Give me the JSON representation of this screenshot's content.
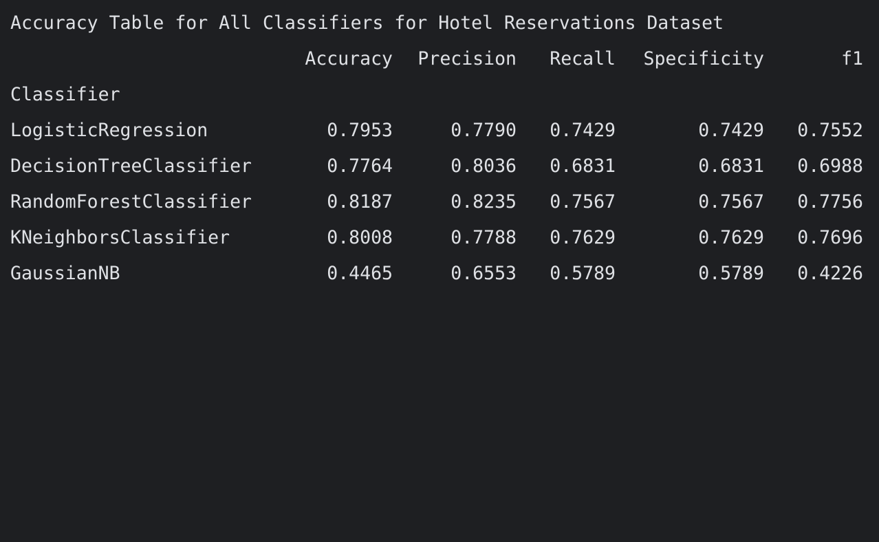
{
  "title": "Accuracy Table for All Classifiers for Hotel Reservations Dataset",
  "columns": [
    "Accuracy",
    "Precision",
    "Recall",
    "Specificity",
    "f1"
  ],
  "index_name": "Classifier",
  "rows": [
    {
      "name": "LogisticRegression",
      "values": [
        "0.7953",
        "0.7790",
        "0.7429",
        "0.7429",
        "0.7552"
      ]
    },
    {
      "name": "DecisionTreeClassifier",
      "values": [
        "0.7764",
        "0.8036",
        "0.6831",
        "0.6831",
        "0.6988"
      ]
    },
    {
      "name": "RandomForestClassifier",
      "values": [
        "0.8187",
        "0.8235",
        "0.7567",
        "0.7567",
        "0.7756"
      ]
    },
    {
      "name": "KNeighborsClassifier",
      "values": [
        "0.8008",
        "0.7788",
        "0.7629",
        "0.7629",
        "0.7696"
      ]
    },
    {
      "name": "GaussianNB",
      "values": [
        "0.4465",
        "0.6553",
        "0.5789",
        "0.5789",
        "0.4226"
      ]
    }
  ]
}
